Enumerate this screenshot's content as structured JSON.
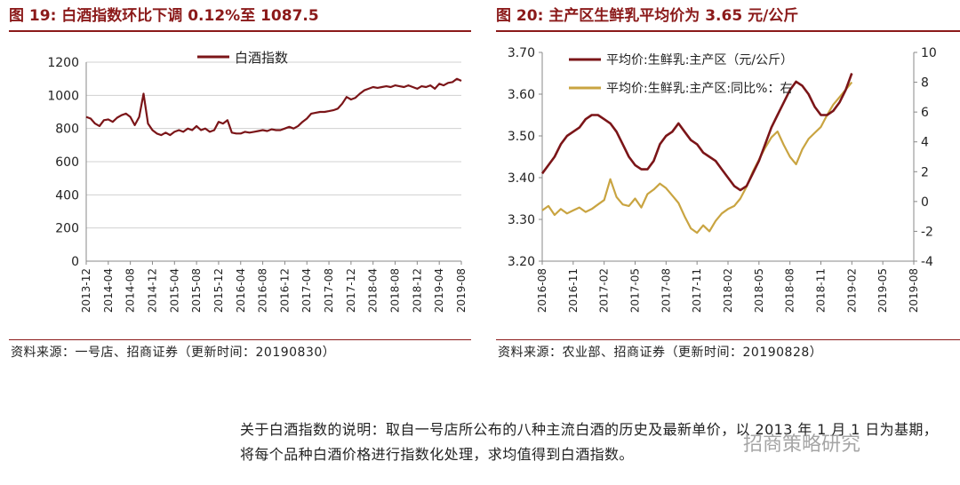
{
  "left": {
    "title": "图 19: 白酒指数环比下调 0.12%至 1087.5",
    "source": "资料来源：一号店、招商证券（更新时间：20190830）"
  },
  "right": {
    "title": "图 20: 主产区生鲜乳平均价为 3.65 元/公斤",
    "source": "资料来源：农业部、招商证券（更新时间：20190828）"
  },
  "note": "关于白酒指数的说明：取自一号店所公布的八种主流白酒的历史及最新单价，以 2013 年 1 月 1 日为基期，将每个品种白酒价格进行指数化处理，求均值得到白酒指数。",
  "watermark": "招商策略研究",
  "colors": {
    "title": "#8b1a1a",
    "series_dark": "#7b1518",
    "series_gold": "#c9a441"
  },
  "chart_data": [
    {
      "type": "line",
      "xlabels": [
        "2013-12",
        "2014-04",
        "2014-08",
        "2014-12",
        "2015-04",
        "2015-08",
        "2015-12",
        "2016-04",
        "2016-08",
        "2016-12",
        "2017-04",
        "2017-08",
        "2017-12",
        "2018-04",
        "2018-08",
        "2018-12",
        "2019-04",
        "2019-08"
      ],
      "ylim": [
        0,
        1200
      ],
      "yticks": [
        0,
        200,
        400,
        600,
        800,
        1000,
        1200
      ],
      "grid": true,
      "legend_position": "top-center",
      "series": [
        {
          "name": "白酒指数",
          "color": "#7b1518",
          "points": [
            [
              0,
              870
            ],
            [
              0.2,
              860
            ],
            [
              0.4,
              830
            ],
            [
              0.6,
              815
            ],
            [
              0.8,
              850
            ],
            [
              1,
              855
            ],
            [
              1.2,
              840
            ],
            [
              1.4,
              865
            ],
            [
              1.6,
              880
            ],
            [
              1.8,
              890
            ],
            [
              2,
              870
            ],
            [
              2.2,
              820
            ],
            [
              2.4,
              870
            ],
            [
              2.6,
              1010
            ],
            [
              2.8,
              830
            ],
            [
              3,
              790
            ],
            [
              3.2,
              770
            ],
            [
              3.4,
              760
            ],
            [
              3.6,
              775
            ],
            [
              3.8,
              760
            ],
            [
              4,
              780
            ],
            [
              4.2,
              790
            ],
            [
              4.4,
              780
            ],
            [
              4.6,
              800
            ],
            [
              4.8,
              790
            ],
            [
              5,
              815
            ],
            [
              5.2,
              790
            ],
            [
              5.4,
              800
            ],
            [
              5.6,
              780
            ],
            [
              5.8,
              790
            ],
            [
              6,
              840
            ],
            [
              6.2,
              830
            ],
            [
              6.4,
              850
            ],
            [
              6.6,
              775
            ],
            [
              6.8,
              770
            ],
            [
              7,
              770
            ],
            [
              7.2,
              780
            ],
            [
              7.4,
              775
            ],
            [
              7.6,
              780
            ],
            [
              7.8,
              785
            ],
            [
              8,
              790
            ],
            [
              8.2,
              785
            ],
            [
              8.4,
              795
            ],
            [
              8.6,
              790
            ],
            [
              8.8,
              790
            ],
            [
              9,
              800
            ],
            [
              9.2,
              810
            ],
            [
              9.4,
              800
            ],
            [
              9.6,
              815
            ],
            [
              9.8,
              840
            ],
            [
              10,
              860
            ],
            [
              10.2,
              890
            ],
            [
              10.4,
              895
            ],
            [
              10.6,
              900
            ],
            [
              10.8,
              900
            ],
            [
              11,
              905
            ],
            [
              11.2,
              910
            ],
            [
              11.4,
              920
            ],
            [
              11.6,
              950
            ],
            [
              11.8,
              990
            ],
            [
              12,
              975
            ],
            [
              12.2,
              985
            ],
            [
              12.4,
              1010
            ],
            [
              12.6,
              1030
            ],
            [
              12.8,
              1040
            ],
            [
              13,
              1050
            ],
            [
              13.2,
              1045
            ],
            [
              13.4,
              1050
            ],
            [
              13.6,
              1055
            ],
            [
              13.8,
              1050
            ],
            [
              14,
              1060
            ],
            [
              14.2,
              1055
            ],
            [
              14.4,
              1050
            ],
            [
              14.6,
              1060
            ],
            [
              14.8,
              1050
            ],
            [
              15,
              1040
            ],
            [
              15.2,
              1055
            ],
            [
              15.4,
              1050
            ],
            [
              15.6,
              1060
            ],
            [
              15.8,
              1040
            ],
            [
              16,
              1070
            ],
            [
              16.2,
              1060
            ],
            [
              16.4,
              1075
            ],
            [
              16.6,
              1080
            ],
            [
              16.8,
              1100
            ],
            [
              17,
              1087.5
            ]
          ]
        }
      ]
    },
    {
      "type": "line",
      "xlabels": [
        "2016-08",
        "2016-11",
        "2017-02",
        "2017-05",
        "2017-08",
        "2017-11",
        "2018-02",
        "2018-05",
        "2018-08",
        "2018-11",
        "2019-02",
        "2019-05",
        "2019-08"
      ],
      "ylim_left": [
        3.2,
        3.7
      ],
      "yticks_left": [
        "3.20",
        "3.30",
        "3.40",
        "3.50",
        "3.60",
        "3.70"
      ],
      "ylim_right": [
        -4,
        10
      ],
      "yticks_right": [
        "-4",
        "-2",
        "0",
        "2",
        "4",
        "6",
        "8",
        "10"
      ],
      "grid": false,
      "legend_position": "top-left",
      "series": [
        {
          "name": "平均价:生鲜乳:主产区（元/公斤）",
          "axis": "left",
          "color": "#7b1518",
          "points": [
            [
              0,
              3.41
            ],
            [
              0.2,
              3.43
            ],
            [
              0.4,
              3.45
            ],
            [
              0.6,
              3.48
            ],
            [
              0.8,
              3.5
            ],
            [
              1,
              3.51
            ],
            [
              1.2,
              3.52
            ],
            [
              1.4,
              3.54
            ],
            [
              1.6,
              3.55
            ],
            [
              1.8,
              3.55
            ],
            [
              2,
              3.54
            ],
            [
              2.2,
              3.53
            ],
            [
              2.4,
              3.51
            ],
            [
              2.6,
              3.48
            ],
            [
              2.8,
              3.45
            ],
            [
              3,
              3.43
            ],
            [
              3.2,
              3.42
            ],
            [
              3.4,
              3.42
            ],
            [
              3.6,
              3.44
            ],
            [
              3.8,
              3.48
            ],
            [
              4,
              3.5
            ],
            [
              4.2,
              3.51
            ],
            [
              4.4,
              3.53
            ],
            [
              4.6,
              3.51
            ],
            [
              4.8,
              3.49
            ],
            [
              5,
              3.48
            ],
            [
              5.2,
              3.46
            ],
            [
              5.4,
              3.45
            ],
            [
              5.6,
              3.44
            ],
            [
              5.8,
              3.42
            ],
            [
              6,
              3.4
            ],
            [
              6.2,
              3.38
            ],
            [
              6.4,
              3.37
            ],
            [
              6.6,
              3.38
            ],
            [
              6.8,
              3.41
            ],
            [
              7,
              3.44
            ],
            [
              7.2,
              3.48
            ],
            [
              7.4,
              3.52
            ],
            [
              7.6,
              3.55
            ],
            [
              7.8,
              3.58
            ],
            [
              8,
              3.61
            ],
            [
              8.2,
              3.63
            ],
            [
              8.4,
              3.62
            ],
            [
              8.6,
              3.6
            ],
            [
              8.8,
              3.57
            ],
            [
              9,
              3.55
            ],
            [
              9.2,
              3.55
            ],
            [
              9.4,
              3.56
            ],
            [
              9.6,
              3.58
            ],
            [
              9.8,
              3.61
            ],
            [
              10,
              3.65
            ]
          ]
        },
        {
          "name": "平均价:生鲜乳:主产区:同比%：右",
          "axis": "right",
          "color": "#c9a441",
          "points": [
            [
              0,
              -0.6
            ],
            [
              0.2,
              -0.3
            ],
            [
              0.4,
              -0.9
            ],
            [
              0.6,
              -0.5
            ],
            [
              0.8,
              -0.8
            ],
            [
              1,
              -0.6
            ],
            [
              1.2,
              -0.4
            ],
            [
              1.4,
              -0.7
            ],
            [
              1.6,
              -0.5
            ],
            [
              1.8,
              -0.2
            ],
            [
              2,
              0.1
            ],
            [
              2.2,
              1.5
            ],
            [
              2.4,
              0.3
            ],
            [
              2.6,
              -0.2
            ],
            [
              2.8,
              -0.3
            ],
            [
              3,
              0.2
            ],
            [
              3.2,
              -0.4
            ],
            [
              3.4,
              0.5
            ],
            [
              3.6,
              0.8
            ],
            [
              3.8,
              1.2
            ],
            [
              4,
              0.9
            ],
            [
              4.2,
              0.4
            ],
            [
              4.4,
              -0.1
            ],
            [
              4.6,
              -1.0
            ],
            [
              4.8,
              -1.8
            ],
            [
              5,
              -2.1
            ],
            [
              5.2,
              -1.6
            ],
            [
              5.4,
              -2.0
            ],
            [
              5.6,
              -1.3
            ],
            [
              5.8,
              -0.8
            ],
            [
              6,
              -0.5
            ],
            [
              6.2,
              -0.3
            ],
            [
              6.4,
              0.2
            ],
            [
              6.6,
              1.0
            ],
            [
              6.8,
              2.0
            ],
            [
              7,
              2.8
            ],
            [
              7.2,
              3.6
            ],
            [
              7.4,
              4.3
            ],
            [
              7.6,
              4.7
            ],
            [
              7.8,
              3.8
            ],
            [
              8,
              3.0
            ],
            [
              8.2,
              2.5
            ],
            [
              8.4,
              3.5
            ],
            [
              8.6,
              4.2
            ],
            [
              8.8,
              4.6
            ],
            [
              9,
              5.0
            ],
            [
              9.2,
              5.8
            ],
            [
              9.4,
              6.5
            ],
            [
              9.6,
              7.0
            ],
            [
              9.8,
              7.5
            ],
            [
              10,
              8.0
            ]
          ]
        }
      ]
    }
  ]
}
